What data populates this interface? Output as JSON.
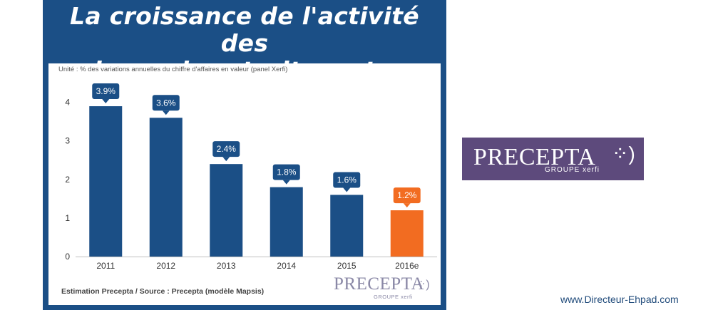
{
  "title_line1": "La croissance de l'activité des",
  "title_line2": "maisons de retraite se tasse",
  "unit_note": "Unité : % des variations annuelles du chiffre d'affaires en valeur (panel Xerfi)",
  "source_note": "Estimation Precepta / Source :  Precepta (modèle Mapsis)",
  "logo": {
    "word": "PRECEPTA",
    "sub": "GROUPE xerfi"
  },
  "website": "www.Directeur-Ehpad.com",
  "colors": {
    "panel": "#1b4f86",
    "bar": "#1b4f86",
    "highlight": "#f26c21",
    "logo_bg": "#5d4a7c"
  },
  "chart_data": {
    "type": "bar",
    "categories": [
      "2011",
      "2012",
      "2013",
      "2014",
      "2015",
      "2016e"
    ],
    "values": [
      3.9,
      3.6,
      2.4,
      1.8,
      1.6,
      1.2
    ],
    "data_labels": [
      "3.9%",
      "3.6%",
      "2.4%",
      "1.8%",
      "1.6%",
      "1.2%"
    ],
    "highlight_category": "2016e",
    "yticks": [
      "0",
      "1",
      "2",
      "3",
      "4"
    ],
    "ylim": [
      0,
      4.4
    ],
    "title": "",
    "xlabel": "",
    "ylabel": "",
    "grid": false
  }
}
